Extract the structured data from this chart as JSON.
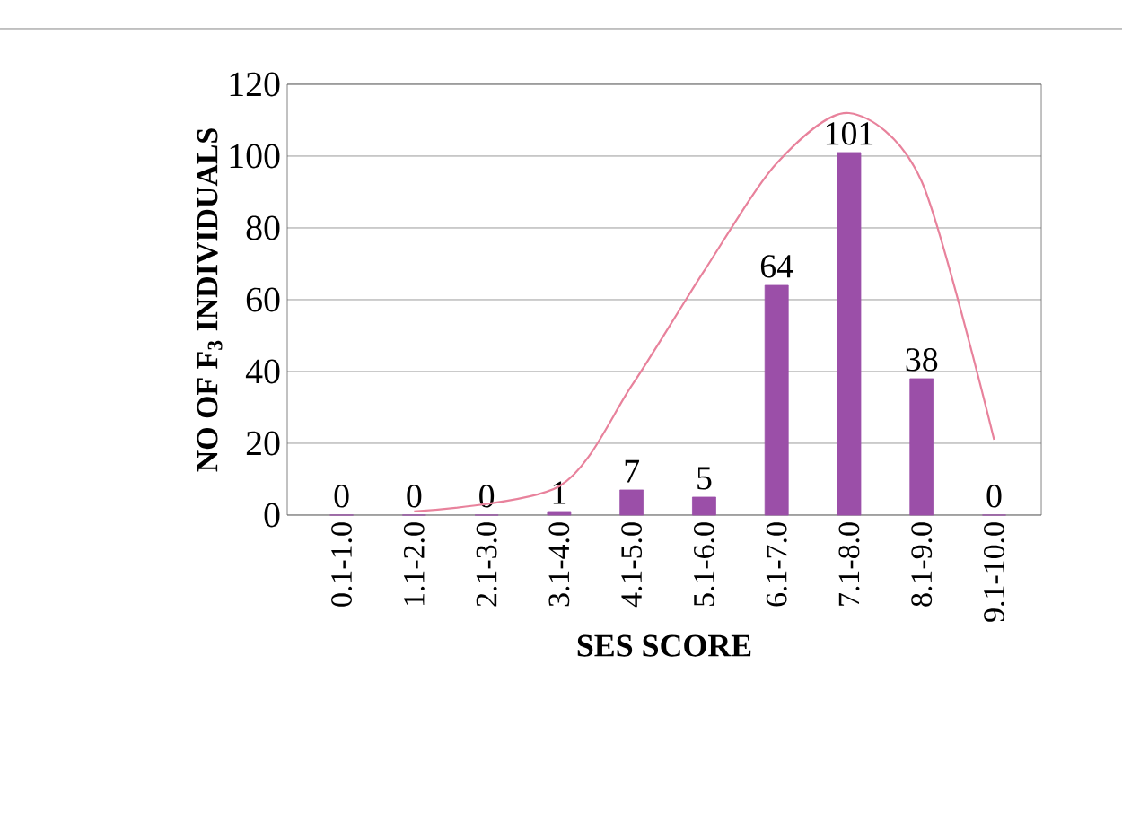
{
  "chart_data": {
    "type": "bar",
    "xlabel": "SES SCORE",
    "ylabel": "NO OF F$_{3}$ INDIVIDUALS",
    "categories": [
      "0.1-1.0",
      "1.1-2.0",
      "2.1-3.0",
      "3.1-4.0",
      "4.1-5.0",
      "5.1-6.0",
      "6.1-7.0",
      "7.1-8.0",
      "8.1-9.0",
      "9.1-10.0"
    ],
    "series": [
      {
        "color": "#9b4fa8",
        "values": [
          0,
          0,
          0,
          1,
          7,
          5,
          64,
          101,
          38,
          0
        ],
        "value_labels": [
          "0",
          "0",
          "0",
          "1",
          "7",
          "5",
          "64",
          "101",
          "38",
          "0"
        ]
      },
      {
        "type": "line",
        "color": "#e8829c",
        "values": [
          null,
          1,
          null,
          8,
          36,
          68,
          98,
          112,
          93,
          21
        ]
      }
    ],
    "ylim": [
      0,
      120
    ],
    "yticks": [
      0,
      20,
      40,
      60,
      80,
      100,
      120
    ],
    "grid": "y"
  }
}
